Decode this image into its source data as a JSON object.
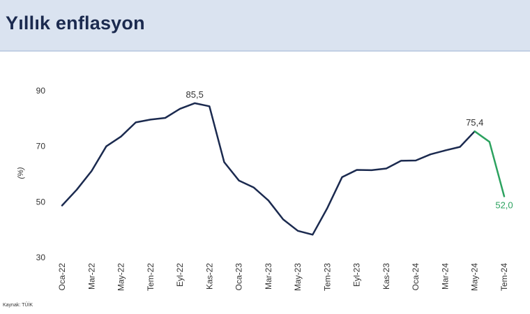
{
  "header": {
    "title": "Yıllık enflasyon"
  },
  "source": "Kaynak: TÜİK",
  "colors": {
    "main_series": "#1b2a4f",
    "forecast_series": "#2ca25f",
    "header_bg": "#dae3f0"
  },
  "chart_data": {
    "type": "line",
    "title": "Yıllık enflasyon",
    "xlabel": "",
    "ylabel": "(%)",
    "ylim": [
      30,
      90
    ],
    "yticks": [
      30,
      50,
      70,
      90
    ],
    "grid": false,
    "legend": "none",
    "x": [
      "Oca-22",
      "Şub-22",
      "Mar-22",
      "Nis-22",
      "May-22",
      "Haz-22",
      "Tem-22",
      "Ağu-22",
      "Eyl-22",
      "Eki-22",
      "Kas-22",
      "Ara-22",
      "Oca-23",
      "Şub-23",
      "Mar-23",
      "Nis-23",
      "May-23",
      "Haz-23",
      "Tem-23",
      "Ağu-23",
      "Eyl-23",
      "Eki-23",
      "Kas-23",
      "Ara-23",
      "Oca-24",
      "Şub-24",
      "Mar-24",
      "Nis-24",
      "May-24",
      "Haz-24",
      "Tem-24"
    ],
    "x_tick_labels": [
      "Oca-22",
      "Mar-22",
      "May-22",
      "Tem-22",
      "Eyl-22",
      "Kas-22",
      "Oca-23",
      "Mar-23",
      "May-23",
      "Tem-23",
      "Eyl-23",
      "Kas-23",
      "Oca-24",
      "Mar-24",
      "May-24",
      "Tem-24"
    ],
    "series": [
      {
        "values": [
          48.7,
          54.4,
          61.1,
          70.0,
          73.5,
          78.6,
          79.6,
          80.2,
          83.5,
          85.5,
          84.4,
          64.3,
          57.7,
          55.2,
          50.5,
          43.7,
          39.6,
          38.2,
          47.8,
          58.9,
          61.5,
          61.4,
          62.0,
          64.8,
          64.9,
          67.1,
          68.5,
          69.8,
          75.4,
          null,
          null
        ]
      },
      {
        "values": [
          null,
          null,
          null,
          null,
          null,
          null,
          null,
          null,
          null,
          null,
          null,
          null,
          null,
          null,
          null,
          null,
          null,
          null,
          null,
          null,
          null,
          null,
          null,
          null,
          null,
          null,
          null,
          null,
          75.4,
          71.6,
          52.0
        ]
      }
    ],
    "data_labels": [
      {
        "index": 9,
        "series": 0,
        "text": "85,5"
      },
      {
        "index": 28,
        "series": 0,
        "text": "75,4"
      },
      {
        "index": 30,
        "series": 1,
        "text": "52,0"
      }
    ]
  }
}
